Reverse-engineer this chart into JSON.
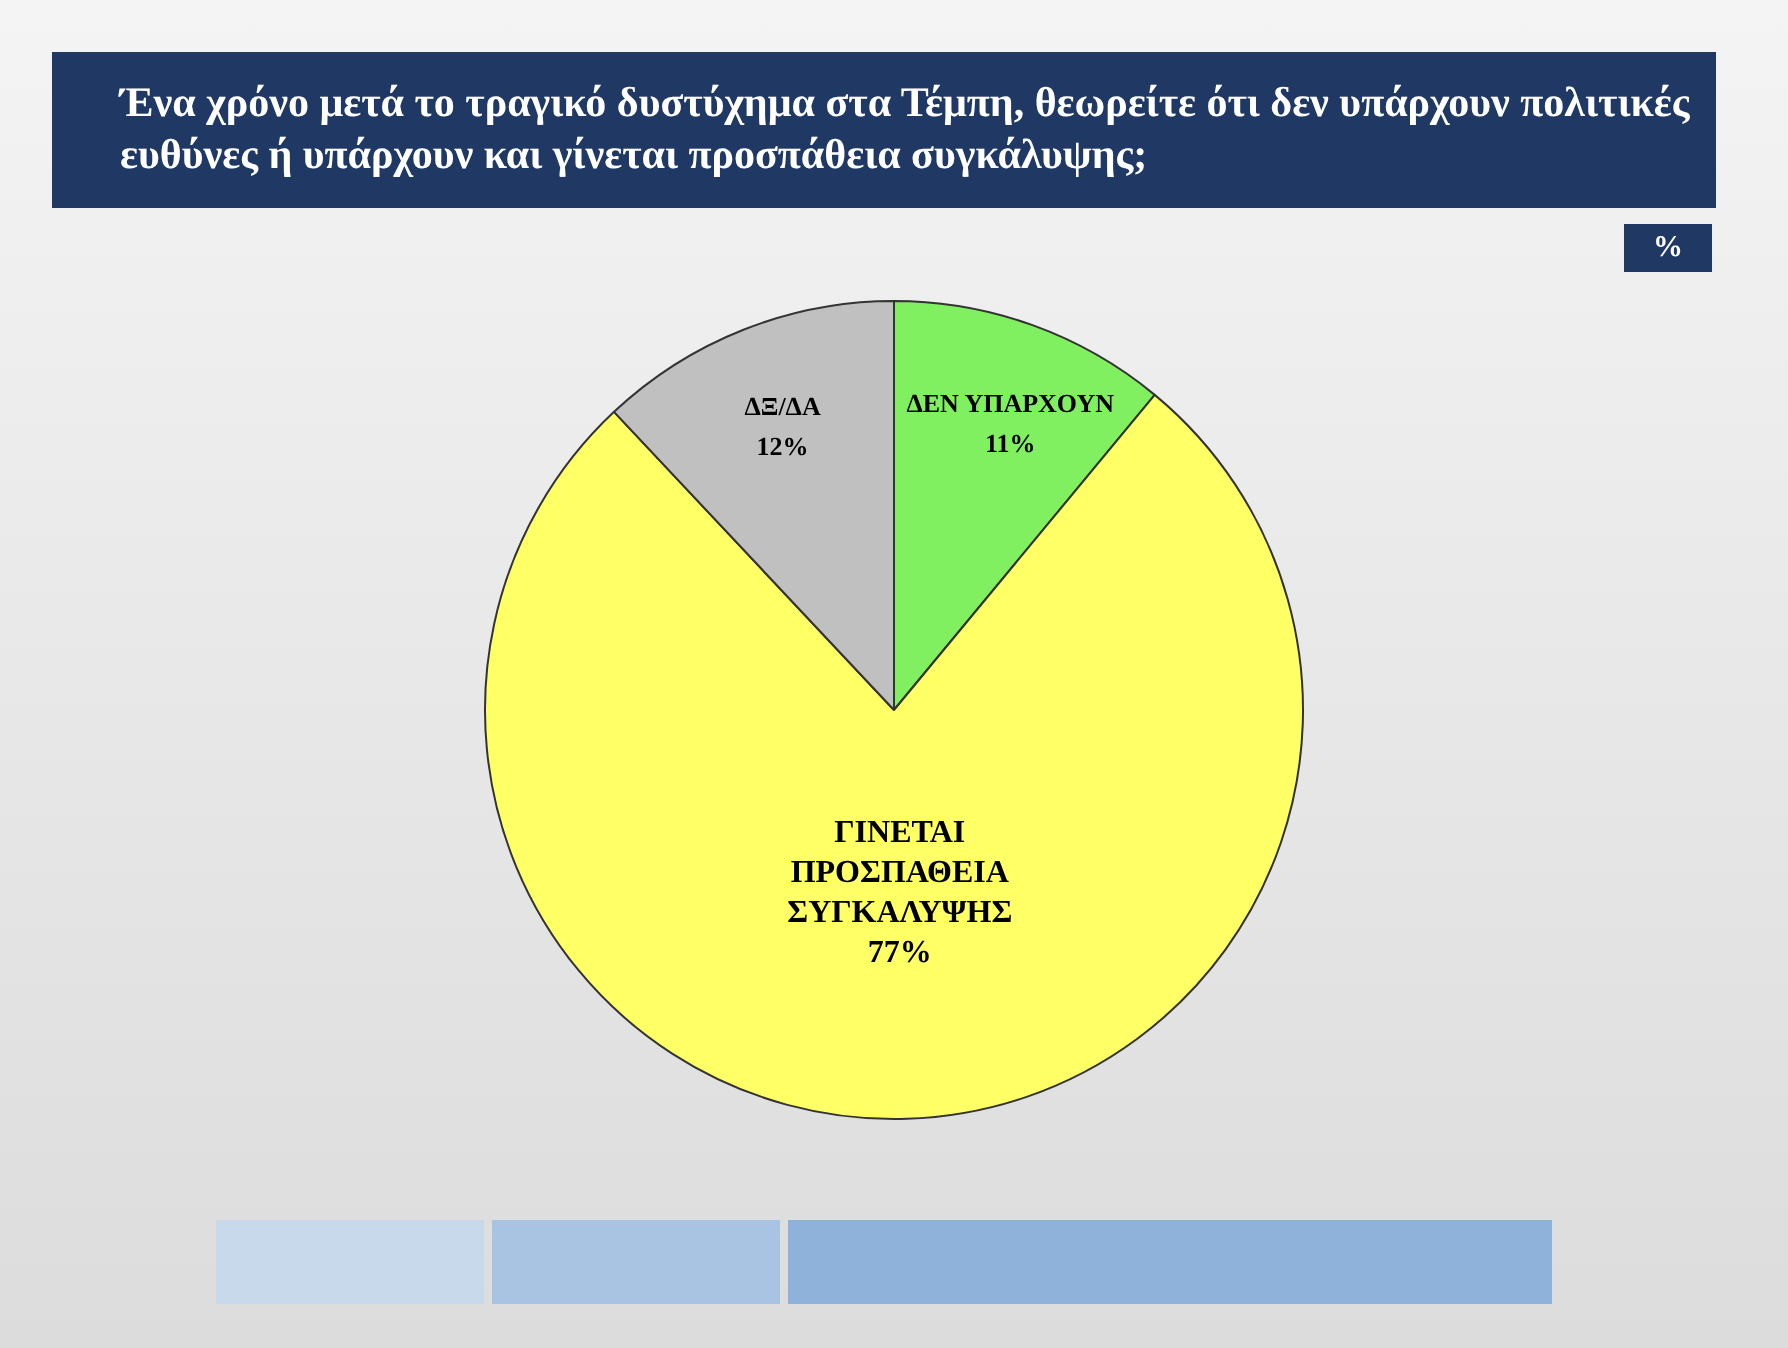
{
  "chart_data": {
    "type": "pie",
    "title": "Ένα χρόνο μετά το τραγικό δυστύχημα στα Τέμπη, θεωρείτε ότι δεν υπάρχουν πολιτικές ευθύνες ή υπάρχουν και γίνεται προσπάθεια συγκάλυψης;",
    "categories": [
      "ΔΕΝ ΥΠΑΡΧΟΥΝ",
      "ΓΙΝΕΤΑΙ ΠΡΟΣΠΑΘΕΙΑ ΣΥΓΚΑΛΥΨΗΣ",
      "ΔΞ/ΔΑ"
    ],
    "values": [
      11,
      77,
      12
    ],
    "value_labels": [
      "11%",
      "77%",
      "12%"
    ],
    "colors": [
      "#80f060",
      "#ffff66",
      "#c0c0c0"
    ],
    "annotations": [
      "%"
    ],
    "legend": false
  }
}
